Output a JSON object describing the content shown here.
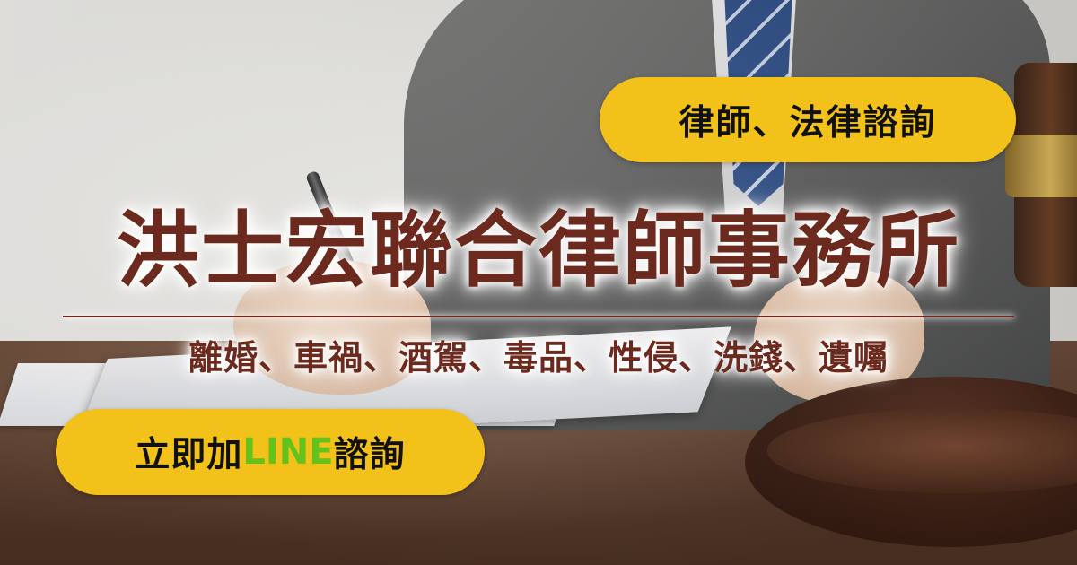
{
  "banner": {
    "badge_top_label": "律師、法律諮詢",
    "title": "洪士宏聯合律師事務所",
    "services": "離婚、車禍、酒駕、毒品、性侵、洗錢、遺囑",
    "cta": {
      "prefix": "立即加",
      "line": "LINE",
      "suffix": "諮詢"
    }
  },
  "colors": {
    "accent_yellow": "#f2c21b",
    "title_brown": "#6b2a1d",
    "line_green": "#63c21b"
  }
}
